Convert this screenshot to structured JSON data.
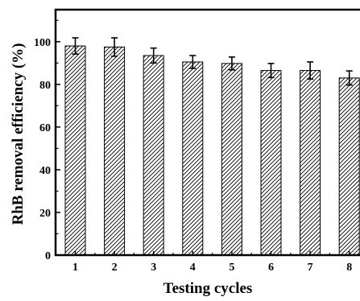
{
  "chart_data": {
    "type": "bar",
    "title": "",
    "xlabel": "Testing cycles",
    "ylabel": "RhB removal efficiency (%)",
    "categories": [
      "1",
      "2",
      "3",
      "4",
      "5",
      "6",
      "7",
      "8"
    ],
    "values": [
      98.0,
      97.5,
      93.5,
      90.5,
      89.8,
      86.5,
      86.5,
      83.0
    ],
    "errors": [
      3.8,
      4.3,
      3.5,
      3.0,
      3.0,
      3.3,
      4.0,
      3.3
    ],
    "ylim": [
      0,
      115
    ],
    "yticks": [
      "0",
      "20",
      "40",
      "60",
      "80",
      "100"
    ],
    "bar_fill": "hatched-diagonal",
    "bar_color": "#000000",
    "grid": false,
    "legend": "none"
  }
}
